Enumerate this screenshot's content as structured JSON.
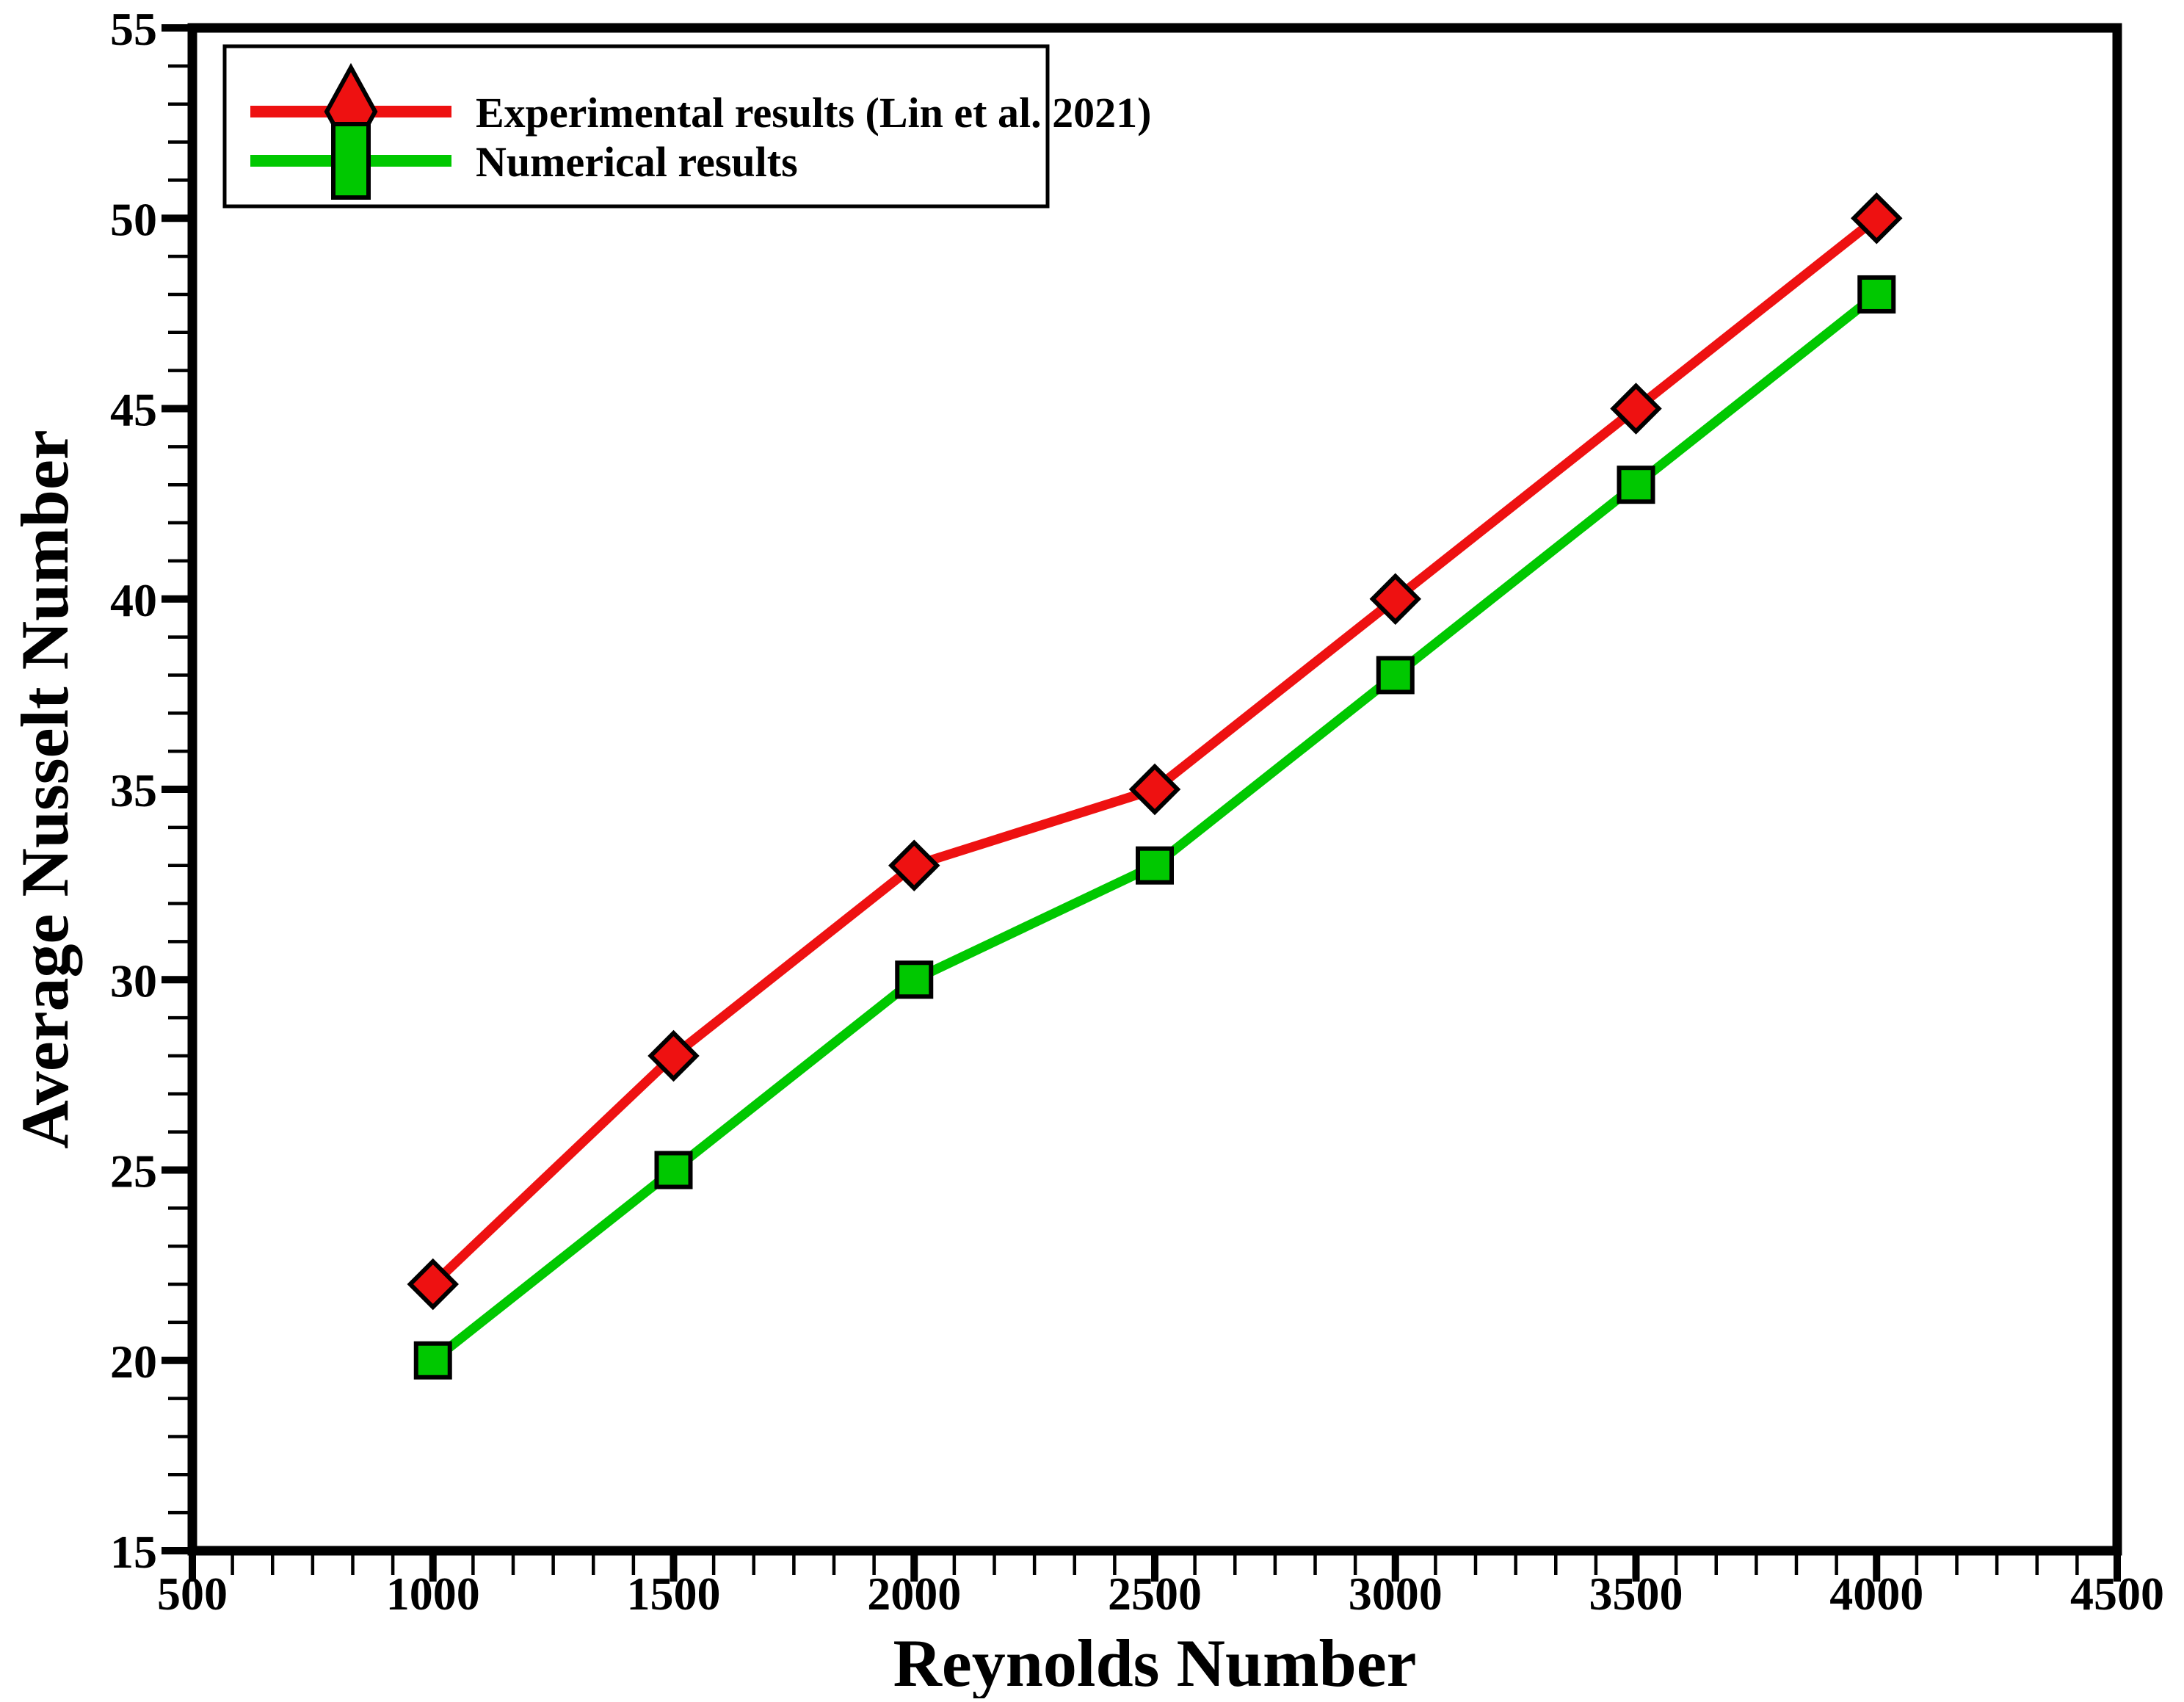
{
  "figure": {
    "background": "#ffffff",
    "border_color": "#000000"
  },
  "chart_data": {
    "type": "line",
    "title": "",
    "xlabel": "Reynolds Number",
    "ylabel": "Average Nusselt Number",
    "xlim": [
      500,
      4500
    ],
    "ylim": [
      15,
      55
    ],
    "x_major_ticks": [
      500,
      1000,
      1500,
      2000,
      2500,
      3000,
      3500,
      4000,
      4500
    ],
    "x_minor_divisions": 6,
    "y_major_ticks": [
      15,
      20,
      25,
      30,
      35,
      40,
      45,
      50,
      55
    ],
    "y_minor_divisions": 5,
    "grid": false,
    "legend_position": "top-left",
    "x": [
      1000,
      1500,
      2000,
      2500,
      3000,
      3500,
      4000
    ],
    "series": [
      {
        "name": "Experimental results (Lin et al. 2021)",
        "marker": "diamond",
        "color": "#ee1111",
        "values": [
          22,
          28,
          33,
          35,
          40,
          45,
          50
        ]
      },
      {
        "name": "Numerical results",
        "marker": "square",
        "color": "#00c800",
        "values": [
          20,
          25,
          30,
          33,
          38,
          43,
          48
        ]
      }
    ]
  }
}
